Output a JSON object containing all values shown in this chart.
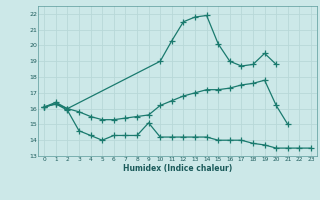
{
  "xlabel": "Humidex (Indice chaleur)",
  "bg_color": "#cce8e8",
  "grid_color": "#b8d8d8",
  "line_color": "#1a7a6e",
  "xlim": [
    -0.5,
    23.5
  ],
  "ylim": [
    13,
    22.5
  ],
  "yticks": [
    13,
    14,
    15,
    16,
    17,
    18,
    19,
    20,
    21,
    22
  ],
  "xticks": [
    0,
    1,
    2,
    3,
    4,
    5,
    6,
    7,
    8,
    9,
    10,
    11,
    12,
    13,
    14,
    15,
    16,
    17,
    18,
    19,
    20,
    21,
    22,
    23
  ],
  "series1_x": [
    0,
    1,
    2,
    3,
    4,
    5,
    6,
    7,
    8,
    9,
    10,
    11,
    12,
    13,
    14,
    15,
    16,
    17,
    18,
    19,
    20,
    21,
    22,
    23
  ],
  "series1_y": [
    16.1,
    16.3,
    15.9,
    14.6,
    14.3,
    14.0,
    14.3,
    14.3,
    14.3,
    15.1,
    14.2,
    14.2,
    14.2,
    14.2,
    14.2,
    14.0,
    14.0,
    14.0,
    13.8,
    13.7,
    13.5,
    13.5,
    13.5,
    13.5
  ],
  "series2_x": [
    0,
    1,
    2,
    3,
    4,
    5,
    6,
    7,
    8,
    9,
    10,
    11,
    12,
    13,
    14,
    15,
    16,
    17,
    18,
    19,
    20,
    21
  ],
  "series2_y": [
    16.1,
    16.3,
    16.0,
    15.8,
    15.5,
    15.3,
    15.3,
    15.4,
    15.5,
    15.6,
    16.2,
    16.5,
    16.8,
    17.0,
    17.2,
    17.2,
    17.3,
    17.5,
    17.6,
    17.8,
    16.2,
    15.0
  ],
  "series3_x": [
    0,
    1,
    2,
    10,
    11,
    12,
    13,
    14,
    15,
    16,
    17,
    18,
    19,
    20
  ],
  "series3_y": [
    16.1,
    16.4,
    16.0,
    19.0,
    20.3,
    21.5,
    21.8,
    21.9,
    20.1,
    19.0,
    18.7,
    18.8,
    19.5,
    18.8
  ]
}
